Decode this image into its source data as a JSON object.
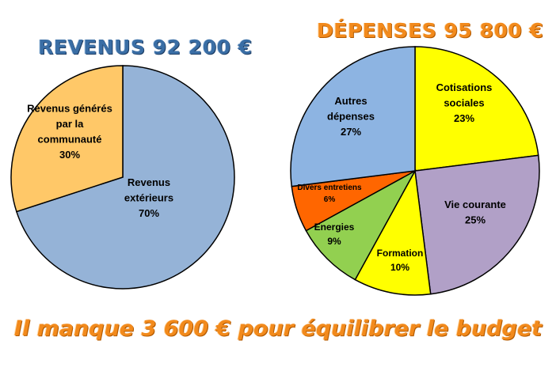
{
  "chart_data": [
    {
      "type": "pie",
      "title": "REVENUS 92 200 €",
      "slices": [
        {
          "label_lines": [
            "Revenus",
            "extérieurs",
            "70%"
          ],
          "value": 70,
          "color": "#95b3d7"
        },
        {
          "label_lines": [
            "Revenus générés",
            "par la",
            "communauté",
            "30%"
          ],
          "value": 30,
          "color": "#ffc868"
        }
      ]
    },
    {
      "type": "pie",
      "title": "DÉPENSES 95 800 €",
      "slices": [
        {
          "label_lines": [
            "Cotisations",
            "sociales",
            "23%"
          ],
          "value": 23,
          "color": "#ffff00"
        },
        {
          "label_lines": [
            "Vie courante",
            "25%"
          ],
          "value": 25,
          "color": "#b1a0c7"
        },
        {
          "label_lines": [
            "Formation",
            "10%"
          ],
          "value": 10,
          "color": "#ffff00"
        },
        {
          "label_lines": [
            "Energies",
            "9%"
          ],
          "value": 9,
          "color": "#92d050"
        },
        {
          "label_lines": [
            "Divers entretiens",
            "6%"
          ],
          "value": 6,
          "color": "#ff6600"
        },
        {
          "label_lines": [
            "Autres",
            "dépenses",
            "27%"
          ],
          "value": 27,
          "color": "#8db4e2"
        }
      ]
    }
  ],
  "footer": "Il manque 3 600 € pour équilibrer le budget"
}
